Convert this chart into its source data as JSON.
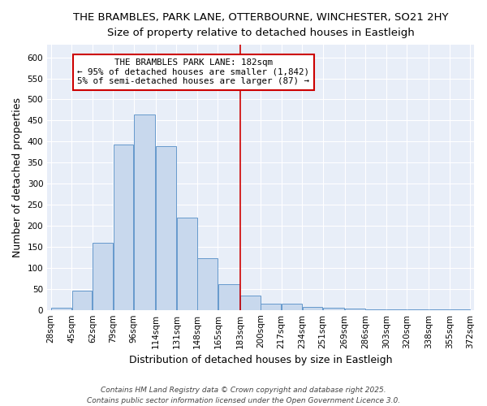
{
  "title1": "THE BRAMBLES, PARK LANE, OTTERBOURNE, WINCHESTER, SO21 2HY",
  "title2": "Size of property relative to detached houses in Eastleigh",
  "xlabel": "Distribution of detached houses by size in Eastleigh",
  "ylabel": "Number of detached properties",
  "bar_color": "#c8d8ed",
  "bar_edge_color": "#6699cc",
  "background_color": "#ffffff",
  "axes_bg_color": "#e8eef8",
  "grid_color": "#ffffff",
  "annotation_text": "THE BRAMBLES PARK LANE: 182sqm\n← 95% of detached houses are smaller (1,842)\n5% of semi-detached houses are larger (87) →",
  "annotation_box_color": "white",
  "annotation_box_edge": "#cc0000",
  "vline_x": 183,
  "vline_color": "#cc0000",
  "bins": [
    28,
    45,
    62,
    79,
    96,
    114,
    131,
    148,
    165,
    183,
    200,
    217,
    234,
    251,
    269,
    286,
    303,
    320,
    338,
    355,
    372
  ],
  "bar_heights": [
    5,
    45,
    160,
    393,
    465,
    389,
    220,
    123,
    62,
    35,
    15,
    15,
    8,
    6,
    3,
    2,
    2,
    1,
    1,
    1
  ],
  "ylim": [
    0,
    630
  ],
  "yticks": [
    0,
    50,
    100,
    150,
    200,
    250,
    300,
    350,
    400,
    450,
    500,
    550,
    600
  ],
  "tick_labels": [
    "28sqm",
    "45sqm",
    "62sqm",
    "79sqm",
    "96sqm",
    "114sqm",
    "131sqm",
    "148sqm",
    "165sqm",
    "183sqm",
    "200sqm",
    "217sqm",
    "234sqm",
    "251sqm",
    "269sqm",
    "286sqm",
    "303sqm",
    "320sqm",
    "338sqm",
    "355sqm",
    "372sqm"
  ],
  "footer": "Contains HM Land Registry data © Crown copyright and database right 2025.\nContains public sector information licensed under the Open Government Licence 3.0.",
  "title_fontsize": 9.5,
  "subtitle_fontsize": 9.0,
  "tick_label_fontsize": 7.5,
  "axis_label_fontsize": 9.0,
  "footer_fontsize": 6.5,
  "annot_fontsize": 7.8
}
